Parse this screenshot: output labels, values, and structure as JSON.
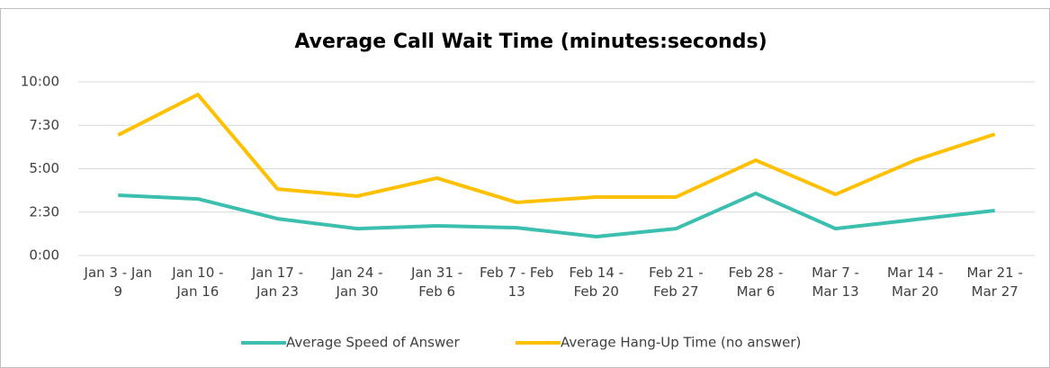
{
  "chart_data": {
    "type": "line",
    "title": "Average Call Wait Time (minutes:seconds)",
    "categories": [
      "Jan 3 - Jan 9",
      "Jan 10 - Jan 16",
      "Jan 17 - Jan 23",
      "Jan 24 - Jan 30",
      "Jan 31 - Feb 6",
      "Feb 7 - Feb 13",
      "Feb 14 - Feb 20",
      "Feb 21 - Feb 27",
      "Feb 28 - Mar 6",
      "Mar 7 - Mar 13",
      "Mar 14 - Mar 20",
      "Mar 21 - Mar 27"
    ],
    "series": [
      {
        "name": "Average Speed of Answer",
        "color": "#3cbfae",
        "values": [
          3.47,
          3.26,
          2.12,
          1.55,
          1.71,
          1.6,
          1.09,
          1.55,
          3.58,
          1.55,
          2.07,
          2.59
        ]
      },
      {
        "name": "Average Hang-Up Time (no answer)",
        "color": "#ffc000",
        "values": [
          6.94,
          9.27,
          3.83,
          3.42,
          4.46,
          3.06,
          3.37,
          3.37,
          5.49,
          3.52,
          5.49,
          6.99
        ]
      }
    ],
    "ylim": [
      0,
      10
    ],
    "yticks": [
      {
        "value": 0,
        "label": "0:00"
      },
      {
        "value": 2.5,
        "label": "2:30"
      },
      {
        "value": 5,
        "label": "5:00"
      },
      {
        "value": 7.5,
        "label": "7:30"
      },
      {
        "value": 10,
        "label": "10:00"
      }
    ],
    "grid": true,
    "legend": "bottom"
  }
}
